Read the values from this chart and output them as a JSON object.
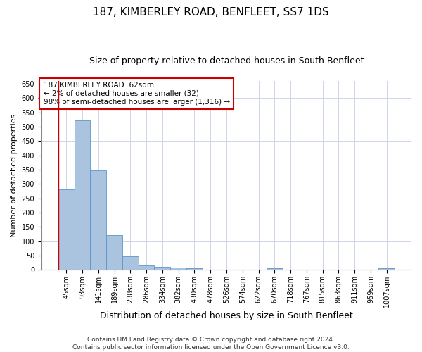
{
  "title": "187, KIMBERLEY ROAD, BENFLEET, SS7 1DS",
  "subtitle": "Size of property relative to detached houses in South Benfleet",
  "xlabel": "Distribution of detached houses by size in South Benfleet",
  "ylabel": "Number of detached properties",
  "footer_line1": "Contains HM Land Registry data © Crown copyright and database right 2024.",
  "footer_line2": "Contains public sector information licensed under the Open Government Licence v3.0.",
  "categories": [
    "45sqm",
    "93sqm",
    "141sqm",
    "189sqm",
    "238sqm",
    "286sqm",
    "334sqm",
    "382sqm",
    "430sqm",
    "478sqm",
    "526sqm",
    "574sqm",
    "622sqm",
    "670sqm",
    "718sqm",
    "767sqm",
    "815sqm",
    "863sqm",
    "911sqm",
    "959sqm",
    "1007sqm"
  ],
  "values": [
    282,
    522,
    347,
    122,
    47,
    16,
    11,
    9,
    5,
    0,
    0,
    0,
    0,
    5,
    0,
    0,
    0,
    0,
    0,
    0,
    5
  ],
  "bar_color": "#aac4e0",
  "bar_edge_color": "#5a96c8",
  "annotation_box_text_line1": "187 KIMBERLEY ROAD: 62sqm",
  "annotation_box_text_line2": "← 2% of detached houses are smaller (32)",
  "annotation_box_text_line3": "98% of semi-detached houses are larger (1,316) →",
  "annotation_box_edge_color": "#cc0000",
  "annotation_box_bg_color": "#ffffff",
  "ylim": [
    0,
    660
  ],
  "yticks": [
    0,
    50,
    100,
    150,
    200,
    250,
    300,
    350,
    400,
    450,
    500,
    550,
    600,
    650
  ],
  "bg_color": "#ffffff",
  "grid_color": "#ccd6e8",
  "title_fontsize": 11,
  "subtitle_fontsize": 9,
  "xlabel_fontsize": 9,
  "ylabel_fontsize": 8,
  "tick_fontsize": 7,
  "annotation_fontsize": 7.5,
  "footer_fontsize": 6.5
}
